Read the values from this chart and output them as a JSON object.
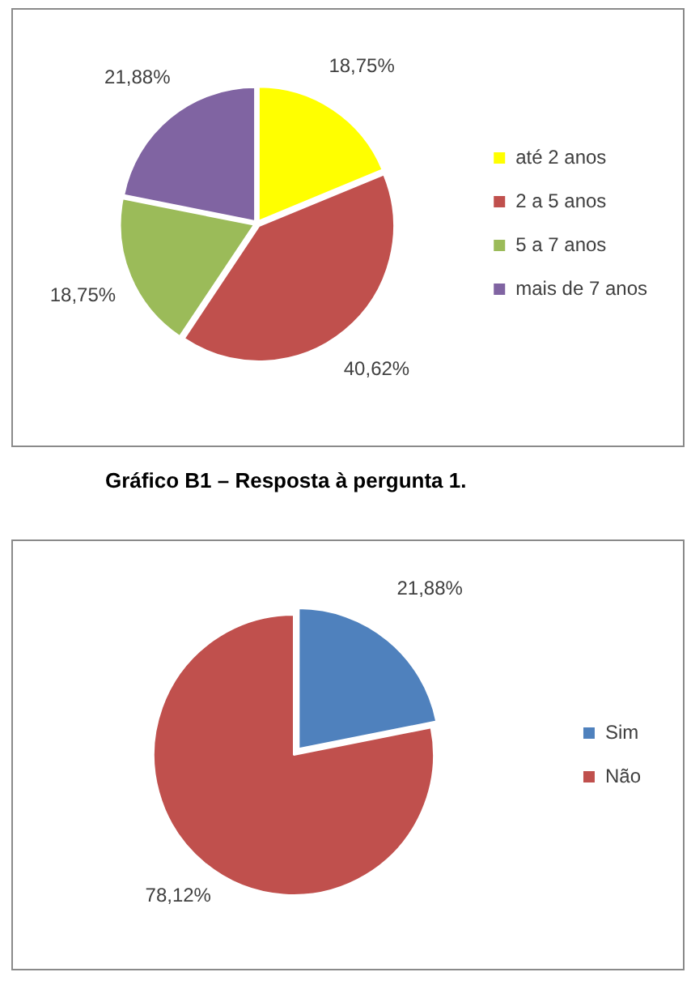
{
  "chart_data": [
    {
      "type": "pie",
      "categories": [
        "até 2 anos",
        "2 a 5 anos",
        "5 a 7 anos",
        "mais de 7 anos"
      ],
      "values": [
        18.75,
        40.62,
        18.75,
        21.88
      ],
      "colors": [
        "#ffff00",
        "#c0504d",
        "#9bbb59",
        "#8064a2"
      ],
      "value_labels": [
        "18,75%",
        "40,62%",
        "18,75%",
        "21,88%"
      ],
      "legend": "right",
      "annotations": [
        "Gráfico B1 – Resposta à pergunta 1."
      ]
    },
    {
      "type": "pie",
      "categories": [
        "Sim",
        "Não"
      ],
      "values": [
        21.88,
        78.12
      ],
      "colors": [
        "#4f81bd",
        "#c0504d"
      ],
      "value_labels": [
        "21,88%",
        "78,12%"
      ],
      "legend": "right"
    }
  ]
}
